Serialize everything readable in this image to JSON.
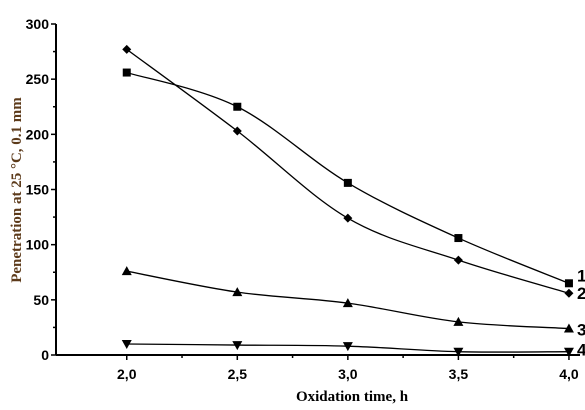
{
  "chart_data": {
    "type": "line",
    "xlabel": "Oxidation time, h",
    "ylabel": "Penetration at 25 °C, 0.1 mm",
    "xlim": [
      1.68,
      4.05
    ],
    "ylim": [
      0,
      300
    ],
    "x_ticks": [
      "2,0",
      "2,5",
      "3,0",
      "3,5",
      "4,0"
    ],
    "x_tick_values": [
      2.0,
      2.5,
      3.0,
      3.5,
      4.0
    ],
    "y_ticks": [
      "0",
      "50",
      "100",
      "150",
      "200",
      "250",
      "300"
    ],
    "y_tick_values": [
      0,
      50,
      100,
      150,
      200,
      250,
      300
    ],
    "grid": false,
    "series": [
      {
        "label": "1",
        "marker": "square",
        "x": [
          2.0,
          2.5,
          3.0,
          3.5,
          4.0
        ],
        "values": [
          256,
          225,
          156,
          106,
          65
        ]
      },
      {
        "label": "2",
        "marker": "diamond",
        "x": [
          2.0,
          2.5,
          3.0,
          3.5,
          4.0
        ],
        "values": [
          277,
          203,
          124,
          86,
          56
        ]
      },
      {
        "label": "3",
        "marker": "triangle-up",
        "x": [
          2.0,
          2.5,
          3.0,
          3.5,
          4.0
        ],
        "values": [
          76,
          57,
          47,
          30,
          24
        ]
      },
      {
        "label": "4",
        "marker": "triangle-down",
        "x": [
          2.0,
          2.5,
          3.0,
          3.5,
          4.0
        ],
        "values": [
          10,
          9,
          8,
          3,
          3
        ]
      }
    ]
  }
}
